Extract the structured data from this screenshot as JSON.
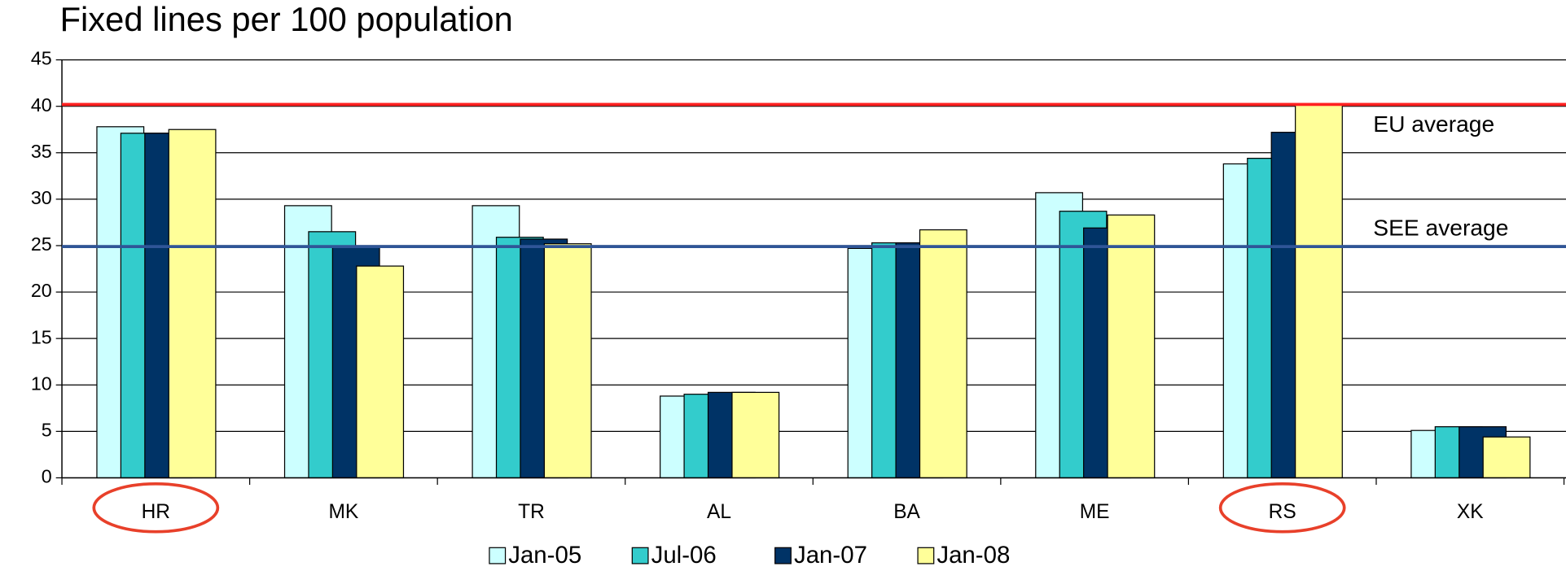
{
  "chart_data": {
    "type": "bar",
    "title": "Fixed lines per 100 population",
    "categories": [
      "HR",
      "MK",
      "TR",
      "AL",
      "BA",
      "ME",
      "RS",
      "XK"
    ],
    "series": [
      {
        "name": "Jan-05",
        "color": "#ccffff",
        "values": [
          37.8,
          29.3,
          29.3,
          8.8,
          24.7,
          30.7,
          33.8,
          5.1
        ]
      },
      {
        "name": "Jul-06",
        "color": "#33cccc",
        "values": [
          37.1,
          26.5,
          25.9,
          9.0,
          25.3,
          28.7,
          34.4,
          5.5
        ]
      },
      {
        "name": "Jan-07",
        "color": "#003366",
        "values": [
          37.1,
          24.9,
          25.7,
          9.2,
          25.3,
          26.9,
          37.2,
          5.5
        ]
      },
      {
        "name": "Jan-08",
        "color": "#ffff99",
        "values": [
          37.5,
          22.8,
          25.2,
          9.2,
          26.7,
          28.3,
          40.2,
          4.4
        ]
      }
    ],
    "ylim": [
      0,
      45
    ],
    "yticks": [
      0,
      5,
      10,
      15,
      20,
      25,
      30,
      35,
      40,
      45
    ],
    "grid": true,
    "reference_lines": [
      {
        "label": "EU average",
        "value": 40.2,
        "color": "#ff2020"
      },
      {
        "label": "SEE average",
        "value": 24.9,
        "color": "#2f5597"
      }
    ],
    "highlighted_categories": [
      0,
      6
    ],
    "highlight_color": "#e8402a"
  }
}
